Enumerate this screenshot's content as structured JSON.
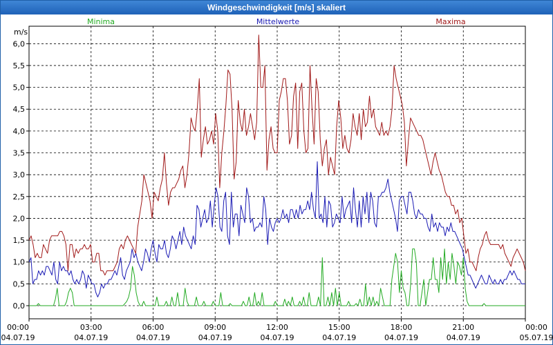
{
  "window": {
    "title": "Windgeschwindigkeit [m/s] skaliert"
  },
  "chart_data": {
    "type": "line",
    "ylabel": "m/s",
    "ylim": [
      -0.3,
      6.4
    ],
    "xlim_hours": [
      0,
      24
    ],
    "y_ticks": [
      "0,0",
      "0,5",
      "1,0",
      "1,5",
      "2,0",
      "2,5",
      "3,0",
      "3,5",
      "4,0",
      "4,5",
      "5,0",
      "5,5",
      "6,0"
    ],
    "x_ticks": [
      {
        "time": "00:00",
        "date": "04.07.19"
      },
      {
        "time": "03:00",
        "date": "04.07.19"
      },
      {
        "time": "06:00",
        "date": "04.07.19"
      },
      {
        "time": "09:00",
        "date": "04.07.19"
      },
      {
        "time": "12:00",
        "date": "04.07.19"
      },
      {
        "time": "15:00",
        "date": "04.07.19"
      },
      {
        "time": "18:00",
        "date": "04.07.19"
      },
      {
        "time": "21:00",
        "date": "04.07.19"
      },
      {
        "time": "00:00",
        "date": "05.07.19"
      }
    ],
    "grid": true,
    "series": [
      {
        "name": "Minima",
        "color": "#22aa22",
        "values": [
          0.0,
          0.0,
          0.0,
          0.0,
          0.0,
          0.05,
          0.0,
          0.0,
          0.0,
          0.0,
          0.0,
          0.0,
          0.0,
          0.0,
          0.15,
          0.4,
          0.0,
          0.0,
          0.0,
          0.0,
          0.1,
          0.3,
          0.4,
          0.3,
          0.0,
          0.0,
          0.0,
          0.0,
          0.0,
          0.0,
          0.0,
          0.0,
          0.0,
          0.0,
          0.0,
          0.0,
          0.0,
          0.0,
          0.0,
          0.0,
          0.0,
          0.0,
          0.0,
          0.0,
          0.0,
          0.0,
          0.0,
          0.0,
          0.0,
          0.0,
          0.0,
          0.05,
          0.1,
          0.2,
          0.4,
          0.9,
          0.7,
          0.3,
          0.1,
          0.0,
          0.0,
          0.1,
          0.0,
          0.0,
          0.0,
          0.0,
          0.0,
          0.0,
          0.2,
          0.0,
          0.0,
          0.0,
          0.0,
          0.1,
          0.0,
          0.0,
          0.2,
          0.0,
          0.0,
          0.3,
          0.0,
          0.0,
          0.0,
          0.4,
          0.1,
          0.0,
          0.0,
          0.0,
          0.0,
          0.2,
          0.0,
          0.0,
          0.0,
          0.1,
          0.0,
          0.0,
          0.0,
          0.0,
          0.1,
          0.0,
          0.0,
          0.0,
          0.3,
          0.0,
          0.0,
          0.0,
          0.0,
          0.05,
          0.0,
          0.0,
          0.0,
          0.0,
          0.0,
          0.0,
          0.1,
          0.0,
          0.0,
          0.2,
          0.0,
          0.0,
          0.3,
          0.0,
          0.1,
          0.0,
          0.3,
          0.0,
          0.0,
          0.0,
          0.0,
          0.0,
          0.0,
          0.1,
          0.0,
          0.0,
          0.0,
          0.0,
          0.15,
          0.0,
          0.1,
          0.0,
          0.2,
          0.0,
          0.0,
          0.0,
          0.1,
          0.0,
          0.2,
          0.0,
          0.0,
          0.3,
          0.0,
          0.0,
          0.0,
          0.0,
          0.2,
          0.0,
          1.1,
          0.0,
          0.0,
          0.2,
          0.0,
          0.3,
          0.0,
          0.4,
          0.0,
          0.3,
          0.0,
          0.0,
          0.0,
          0.0,
          0.1,
          0.0,
          0.0,
          0.0,
          0.05,
          0.0,
          0.15,
          0.0,
          0.0,
          0.5,
          0.0,
          0.2,
          0.0,
          0.2,
          0.0,
          0.1,
          0.0,
          0.4,
          0.2,
          0.0,
          0.0,
          0.0,
          0.0,
          0.6,
          0.9,
          1.2,
          1.0,
          0.3,
          0.8,
          0.4,
          0.3,
          0.0,
          0.0,
          0.5,
          1.3,
          1.3,
          1.0,
          0.0,
          0.0,
          0.3,
          0.6,
          0.0,
          0.3,
          0.6,
          0.6,
          1.1,
          0.6,
          0.6,
          0.3,
          1.1,
          0.6,
          1.3,
          0.5,
          1.0,
          0.6,
          1.2,
          0.9,
          0.5,
          1.0,
          0.9,
          0.7,
          1.1,
          0.4,
          0.1,
          0.0,
          0.0,
          0.0,
          0.0,
          0.0,
          0.0,
          0.0,
          0.0,
          0.05,
          0.0,
          0.0,
          0.0,
          0.0,
          0.0,
          0.0,
          0.0,
          0.0,
          0.0,
          0.0,
          0.0,
          0.0,
          0.0,
          0.0,
          0.0,
          0.0,
          0.0,
          0.0,
          0.0,
          0.0,
          0.0,
          0.0
        ]
      },
      {
        "name": "Mittelwerte",
        "color": "#1a1ab4",
        "values": [
          1.0,
          1.1,
          0.5,
          0.6,
          0.6,
          0.8,
          0.7,
          0.8,
          0.7,
          0.9,
          0.9,
          0.8,
          0.7,
          1.0,
          0.6,
          0.5,
          1.0,
          0.8,
          0.9,
          0.8,
          0.8,
          0.7,
          0.8,
          0.6,
          0.5,
          0.6,
          0.5,
          0.6,
          0.8,
          0.7,
          0.4,
          0.7,
          0.6,
          0.5,
          0.5,
          0.3,
          0.2,
          0.3,
          0.5,
          0.4,
          0.5,
          0.5,
          0.6,
          0.6,
          0.7,
          0.8,
          0.7,
          0.9,
          1.1,
          0.7,
          0.6,
          0.8,
          0.9,
          1.0,
          1.3,
          1.1,
          1.2,
          1.0,
          0.9,
          0.8,
          1.0,
          1.3,
          1.2,
          1.0,
          1.3,
          1.5,
          1.2,
          1.0,
          1.4,
          1.3,
          1.3,
          1.5,
          1.2,
          1.1,
          1.3,
          1.6,
          1.5,
          1.3,
          1.5,
          1.7,
          1.4,
          1.8,
          1.6,
          1.5,
          1.4,
          1.3,
          1.6,
          1.4,
          2.3,
          2.2,
          1.8,
          2.0,
          2.2,
          1.9,
          2.0,
          2.4,
          1.8,
          2.3,
          2.7,
          2.5,
          1.8,
          1.7,
          2.4,
          2.6,
          1.6,
          1.4,
          2.6,
          1.8,
          2.1,
          2.1,
          1.6,
          2.3,
          2.1,
          1.9,
          2.7,
          2.5,
          1.9,
          2.0,
          1.7,
          1.8,
          1.8,
          1.9,
          1.8,
          2.5,
          2.2,
          1.4,
          2.0,
          1.8,
          1.7,
          1.9,
          2.0,
          1.9,
          2.0,
          2.2,
          2.0,
          2.1,
          1.9,
          2.2,
          2.2,
          2.0,
          2.2,
          2.0,
          2.3,
          2.1,
          2.2,
          2.2,
          2.4,
          2.2,
          2.6,
          2.2,
          2.0,
          3.3,
          2.0,
          2.1,
          1.9,
          2.5,
          1.8,
          2.4,
          2.3,
          1.8,
          1.9,
          2.1,
          2.0,
          1.9,
          2.5,
          2.0,
          2.2,
          2.3,
          2.4,
          1.9,
          2.7,
          2.2,
          1.8,
          2.4,
          1.8,
          2.5,
          2.1,
          2.6,
          1.9,
          2.6,
          2.4,
          1.9,
          1.8,
          2.5,
          2.5,
          2.6,
          2.6,
          2.7,
          2.9,
          2.6,
          2.4,
          2.2,
          2.0,
          1.7,
          2.4,
          2.5,
          2.5,
          2.3,
          2.1,
          2.6,
          2.6,
          2.4,
          2.1,
          2.0,
          2.2,
          2.1,
          2.1,
          2.0,
          2.0,
          1.8,
          1.7,
          2.1,
          1.8,
          1.9,
          1.7,
          1.9,
          1.8,
          1.8,
          1.6,
          1.8,
          1.7,
          1.9,
          1.7,
          1.7,
          1.6,
          1.5,
          1.4,
          1.3,
          1.1,
          0.9,
          0.7,
          0.7,
          0.6,
          0.5,
          0.4,
          0.5,
          0.6,
          0.7,
          0.6,
          0.5,
          0.5,
          0.7,
          0.6,
          0.5,
          0.6,
          0.5,
          0.5,
          0.6,
          0.5,
          0.6,
          0.6,
          0.7,
          0.8,
          0.7,
          0.8,
          0.7,
          0.6,
          0.6,
          0.5,
          0.5,
          0.5
        ]
      },
      {
        "name": "Maxima",
        "color": "#a01818",
        "values": [
          1.5,
          1.6,
          1.4,
          1.1,
          1.2,
          1.1,
          1.1,
          1.4,
          1.3,
          1.2,
          1.5,
          1.6,
          1.6,
          1.6,
          1.6,
          1.7,
          1.7,
          1.6,
          1.4,
          0.8,
          1.4,
          1.4,
          1.1,
          1.3,
          1.2,
          1.3,
          1.3,
          1.4,
          1.3,
          1.3,
          1.4,
          1.0,
          1.0,
          1.2,
          1.2,
          0.8,
          0.8,
          0.7,
          0.8,
          0.8,
          0.8,
          0.8,
          0.9,
          1.0,
          1.3,
          1.4,
          1.3,
          1.5,
          1.6,
          1.5,
          1.4,
          1.3,
          1.2,
          1.8,
          2.1,
          2.4,
          3.0,
          2.8,
          2.6,
          2.4,
          2.0,
          2.6,
          2.5,
          2.4,
          2.7,
          2.9,
          3.5,
          2.8,
          2.3,
          2.6,
          2.7,
          2.7,
          2.8,
          2.9,
          3.1,
          3.2,
          2.7,
          3.0,
          3.5,
          4.3,
          4.1,
          4.0,
          4.5,
          5.2,
          3.4,
          3.8,
          4.1,
          3.7,
          3.8,
          4.0,
          3.7,
          4.4,
          4.0,
          2.7,
          3.5,
          4.0,
          4.6,
          5.4,
          5.3,
          4.5,
          2.9,
          3.3,
          4.7,
          4.2,
          4.0,
          4.5,
          3.9,
          4.1,
          4.4,
          4.1,
          3.8,
          4.2,
          6.2,
          5.0,
          5.0,
          5.5,
          3.1,
          3.8,
          4.1,
          3.6,
          3.5,
          3.5,
          4.7,
          4.9,
          5.2,
          5.2,
          4.7,
          3.7,
          3.9,
          4.8,
          5.1,
          3.6,
          4.9,
          5.1,
          4.0,
          3.5,
          3.6,
          5.5,
          4.5,
          3.7,
          5.2,
          4.9,
          3.8,
          3.2,
          3.6,
          3.8,
          3.0,
          3.4,
          3.2,
          3.0,
          4.1,
          4.7,
          4.3,
          3.6,
          3.9,
          3.6,
          3.5,
          3.8,
          4.4,
          4.1,
          3.9,
          4.4,
          3.8,
          4.5,
          4.1,
          4.2,
          4.8,
          4.3,
          4.5,
          4.1,
          4.0,
          3.9,
          4.2,
          3.9,
          4.0,
          3.9,
          4.1,
          4.5,
          5.5,
          5.2,
          5.0,
          4.8,
          4.6,
          4.2,
          3.2,
          3.8,
          4.3,
          4.2,
          4.1,
          4.0,
          3.9,
          3.9,
          3.8,
          3.6,
          3.4,
          3.2,
          3.0,
          3.3,
          3.5,
          3.3,
          3.1,
          3.0,
          2.8,
          2.6,
          2.5,
          2.5,
          2.3,
          2.3,
          2.1,
          2.2,
          1.9,
          2.0,
          1.6,
          1.2,
          1.3,
          1.0,
          1.0,
          0.9,
          0.8,
          1.1,
          1.3,
          1.4,
          1.6,
          1.7,
          1.5,
          1.4,
          1.4,
          1.4,
          1.4,
          1.4,
          1.3,
          1.4,
          1.2,
          1.1,
          1.0,
          0.9,
          1.1,
          1.2,
          1.3,
          1.2,
          1.1,
          1.0,
          0.8
        ]
      }
    ]
  }
}
